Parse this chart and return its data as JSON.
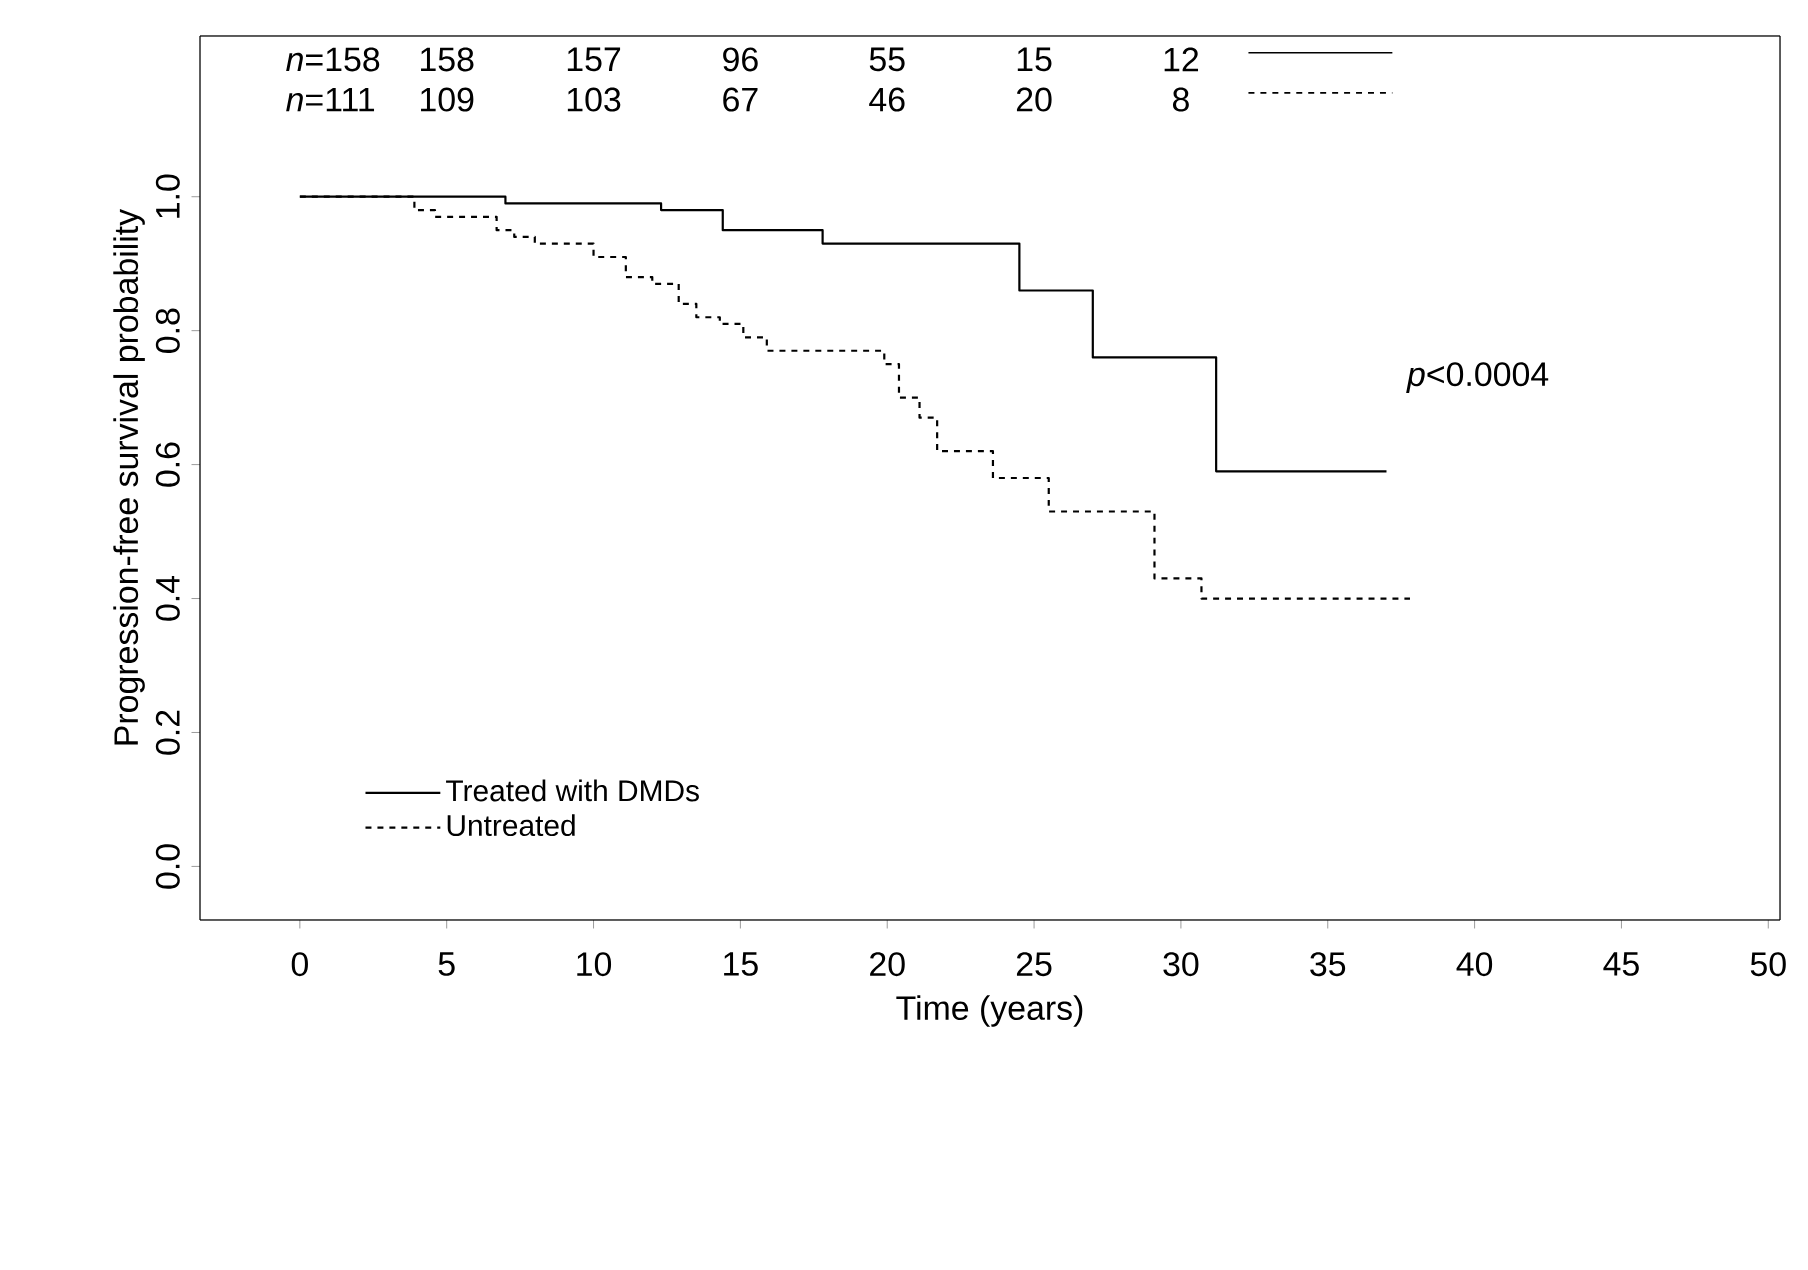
{
  "chart_data": {
    "type": "step",
    "xlabel": "Time (years)",
    "ylabel": "Progression-free survival probability",
    "xlim": [
      -3.4,
      50.4
    ],
    "ylim": [
      -0.08,
      1.24
    ],
    "xticks": [
      0,
      5,
      10,
      15,
      20,
      25,
      30,
      35,
      40,
      45,
      50
    ],
    "yticks": [
      {
        "value": 0,
        "label": "0.0"
      },
      {
        "value": 0.2,
        "label": "0.2"
      },
      {
        "value": 0.4,
        "label": "0.4"
      },
      {
        "value": 0.6,
        "label": "0.6"
      },
      {
        "value": 0.8,
        "label": "0.8"
      },
      {
        "value": 1,
        "label": "1.0"
      }
    ],
    "legend": "bottom left",
    "grid": false,
    "marker": "none",
    "series": [
      {
        "name": "Treated with DMDs",
        "color": "#000000",
        "line_style": "solid",
        "x": [
          0,
          7.0,
          12.3,
          14.4,
          17.8,
          24.5,
          27.0,
          31.2,
          37.0
        ],
        "values": [
          1.0,
          0.99,
          0.98,
          0.95,
          0.93,
          0.86,
          0.76,
          0.59,
          0.59
        ]
      },
      {
        "name": "Untreated",
        "color": "#000000",
        "line_style": "dashed",
        "x": [
          0,
          3.9,
          4.6,
          6.7,
          7.3,
          8.0,
          10.0,
          11.1,
          12.0,
          12.9,
          13.5,
          14.3,
          15.1,
          15.9,
          19.9,
          20.4,
          21.1,
          21.7,
          23.6,
          25.5,
          29.1,
          30.7,
          37.8
        ],
        "values": [
          1.0,
          0.98,
          0.97,
          0.95,
          0.94,
          0.93,
          0.91,
          0.88,
          0.87,
          0.84,
          0.82,
          0.81,
          0.79,
          0.77,
          0.75,
          0.7,
          0.67,
          0.62,
          0.58,
          0.53,
          0.43,
          0.4,
          0.4
        ]
      }
    ],
    "annotations": [
      "*p*<0.0004",
      "*n*=158",
      "158",
      "157",
      "96",
      "55",
      "15",
      "12",
      "*n*=111",
      "109",
      "103",
      "67",
      "46",
      "20",
      "8"
    ]
  }
}
